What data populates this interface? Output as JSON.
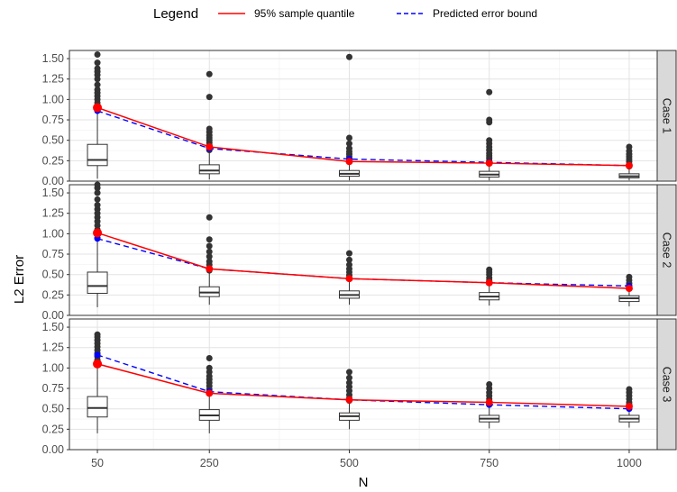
{
  "chart_data": {
    "type": "boxplot",
    "legend": {
      "title": "Legend",
      "position": "top",
      "entries": [
        {
          "label": "95% sample quantile",
          "color": "#ff0000",
          "linestyle": "solid"
        },
        {
          "label": "Predicted error bound",
          "color": "#0000ff",
          "linestyle": "dashed"
        }
      ]
    },
    "xlabel": "N",
    "ylabel": "L2 Error",
    "x_categories": [
      "50",
      "250",
      "500",
      "750",
      "1000"
    ],
    "x_values": [
      50,
      250,
      500,
      750,
      1000
    ],
    "xlim": [
      0,
      1050
    ],
    "ylim": [
      0,
      1.6
    ],
    "yticks": [
      "0.00",
      "0.25",
      "0.50",
      "0.75",
      "1.00",
      "1.25",
      "1.50"
    ],
    "grid": true,
    "colors": {
      "quantile": "#ff0000",
      "bound": "#0000ff",
      "strip": "#d9d9d9",
      "box": "#333333"
    },
    "panels": [
      {
        "label": "Case 1",
        "boxes": [
          {
            "x": 50,
            "q1": 0.19,
            "median": 0.26,
            "q3": 0.45,
            "whisker_low": 0.03,
            "whisker_high": 0.85,
            "outliers": [
              0.88,
              0.92,
              0.96,
              1.0,
              1.04,
              1.08,
              1.12,
              1.18,
              1.25,
              1.3,
              1.34,
              1.38,
              1.45,
              1.55
            ]
          },
          {
            "x": 250,
            "q1": 0.09,
            "median": 0.13,
            "q3": 0.2,
            "whisker_low": 0.02,
            "whisker_high": 0.36,
            "outliers": [
              0.38,
              0.41,
              0.44,
              0.47,
              0.5,
              0.53,
              0.56,
              0.6,
              0.64,
              1.03,
              1.31
            ]
          },
          {
            "x": 500,
            "q1": 0.06,
            "median": 0.09,
            "q3": 0.13,
            "whisker_low": 0.01,
            "whisker_high": 0.22,
            "outliers": [
              0.24,
              0.27,
              0.3,
              0.33,
              0.36,
              0.4,
              0.46,
              0.53,
              1.52
            ]
          },
          {
            "x": 750,
            "q1": 0.05,
            "median": 0.08,
            "q3": 0.12,
            "whisker_low": 0.01,
            "whisker_high": 0.2,
            "outliers": [
              0.22,
              0.25,
              0.28,
              0.31,
              0.34,
              0.38,
              0.42,
              0.46,
              0.5,
              0.72,
              0.75,
              1.09
            ]
          },
          {
            "x": 1000,
            "q1": 0.04,
            "median": 0.06,
            "q3": 0.09,
            "whisker_low": 0.01,
            "whisker_high": 0.16,
            "outliers": [
              0.18,
              0.21,
              0.24,
              0.27,
              0.3,
              0.33,
              0.37,
              0.42
            ]
          }
        ],
        "quantile": [
          0.9,
          0.42,
          0.24,
          0.22,
          0.19
        ],
        "bound": [
          0.86,
          0.4,
          0.27,
          0.23,
          0.19
        ]
      },
      {
        "label": "Case 2",
        "boxes": [
          {
            "x": 50,
            "q1": 0.27,
            "median": 0.36,
            "q3": 0.53,
            "whisker_low": 0.1,
            "whisker_high": 0.92,
            "outliers": [
              0.95,
              1.0,
              1.05,
              1.1,
              1.15,
              1.2,
              1.25,
              1.3,
              1.35,
              1.42,
              1.5,
              1.56,
              1.6
            ]
          },
          {
            "x": 250,
            "q1": 0.23,
            "median": 0.28,
            "q3": 0.35,
            "whisker_low": 0.13,
            "whisker_high": 0.52,
            "outliers": [
              0.55,
              0.58,
              0.62,
              0.66,
              0.72,
              0.78,
              0.85,
              0.93,
              1.2
            ]
          },
          {
            "x": 500,
            "q1": 0.21,
            "median": 0.25,
            "q3": 0.3,
            "whisker_low": 0.13,
            "whisker_high": 0.42,
            "outliers": [
              0.45,
              0.49,
              0.53,
              0.57,
              0.62,
              0.68,
              0.76
            ]
          },
          {
            "x": 750,
            "q1": 0.19,
            "median": 0.23,
            "q3": 0.28,
            "whisker_low": 0.12,
            "whisker_high": 0.38,
            "outliers": [
              0.4,
              0.43,
              0.46,
              0.5,
              0.53,
              0.56
            ]
          },
          {
            "x": 1000,
            "q1": 0.17,
            "median": 0.21,
            "q3": 0.24,
            "whisker_low": 0.11,
            "whisker_high": 0.31,
            "outliers": [
              0.33,
              0.36,
              0.39,
              0.43,
              0.47
            ]
          }
        ],
        "quantile": [
          1.01,
          0.57,
          0.45,
          0.4,
          0.33
        ],
        "bound": [
          0.94,
          0.57,
          0.45,
          0.4,
          0.36
        ]
      },
      {
        "label": "Case 3",
        "boxes": [
          {
            "x": 50,
            "q1": 0.4,
            "median": 0.51,
            "q3": 0.65,
            "whisker_low": 0.2,
            "whisker_high": 1.02,
            "outliers": [
              1.06,
              1.1,
              1.14,
              1.18,
              1.22,
              1.26,
              1.3,
              1.34,
              1.38,
              1.41
            ]
          },
          {
            "x": 250,
            "q1": 0.36,
            "median": 0.42,
            "q3": 0.49,
            "whisker_low": 0.2,
            "whisker_high": 0.68,
            "outliers": [
              0.7,
              0.74,
              0.78,
              0.82,
              0.86,
              0.9,
              0.95,
              1.0,
              1.12
            ]
          },
          {
            "x": 500,
            "q1": 0.36,
            "median": 0.41,
            "q3": 0.45,
            "whisker_low": 0.25,
            "whisker_high": 0.58,
            "outliers": [
              0.6,
              0.63,
              0.67,
              0.72,
              0.77,
              0.82,
              0.88,
              0.95
            ]
          },
          {
            "x": 750,
            "q1": 0.34,
            "median": 0.38,
            "q3": 0.42,
            "whisker_low": 0.26,
            "whisker_high": 0.52,
            "outliers": [
              0.55,
              0.58,
              0.62,
              0.66,
              0.7,
              0.75,
              0.8
            ]
          },
          {
            "x": 1000,
            "q1": 0.34,
            "median": 0.38,
            "q3": 0.42,
            "whisker_low": 0.27,
            "whisker_high": 0.5,
            "outliers": [
              0.52,
              0.55,
              0.58,
              0.62,
              0.66,
              0.7,
              0.74
            ]
          }
        ],
        "quantile": [
          1.05,
          0.69,
          0.61,
          0.58,
          0.53
        ],
        "bound": [
          1.16,
          0.71,
          0.61,
          0.55,
          0.5
        ]
      }
    ]
  }
}
